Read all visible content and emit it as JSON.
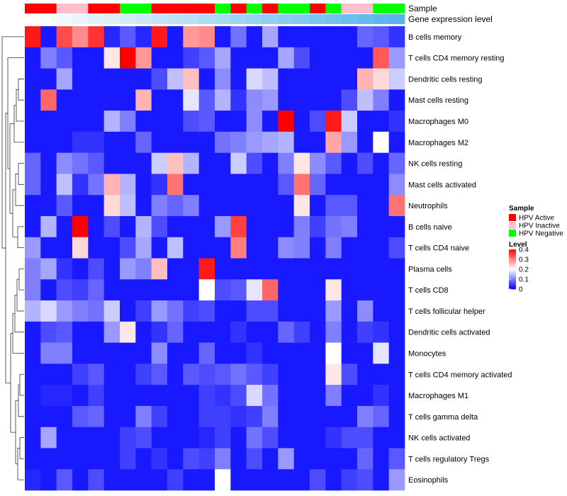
{
  "chart_data": {
    "type": "heatmap",
    "title": "",
    "columns": 24,
    "row_labels": [
      "B cells memory",
      "T cells CD4 memory resting",
      "Dendritic cells resting",
      "Mast cells resting",
      "Macrophages M0",
      "Macrophages M2",
      "NK cells resting",
      "Mast cells activated",
      "Neutrophils",
      "B cells naive",
      "T cells CD4 naive",
      "Plasma cells",
      "T cells CD8",
      "T cells follicular helper",
      "Dendritic cells activated",
      "Monocytes",
      "T cells CD4 memory activated",
      "Macrophages M1",
      "T cells gamma delta",
      "NK cells activated",
      "T cells regulatory  Tregs",
      "Eosinophils"
    ],
    "values": [
      [
        0.38,
        0.02,
        0.34,
        0.29,
        0.36,
        0.03,
        0.07,
        0.03,
        0.38,
        0.02,
        0.28,
        0.29,
        0.02,
        0.09,
        0.02,
        0.13,
        0.02,
        0.02,
        0.02,
        0.02,
        0.02,
        0.08,
        0.07,
        0.04
      ],
      [
        0.02,
        0.1,
        0.07,
        0.02,
        0.02,
        0.22,
        0.4,
        0.28,
        0.02,
        0.02,
        0.05,
        0.07,
        0.13,
        0.02,
        0.02,
        0.02,
        0.13,
        0.06,
        0.02,
        0.02,
        0.02,
        0.02,
        0.33,
        0.12
      ],
      [
        0.02,
        0.02,
        0.13,
        0.02,
        0.02,
        0.02,
        0.02,
        0.02,
        0.06,
        0.15,
        0.25,
        0.02,
        0.11,
        0.02,
        0.17,
        0.15,
        0.02,
        0.02,
        0.02,
        0.02,
        0.02,
        0.26,
        0.23,
        0.16
      ],
      [
        0.02,
        0.32,
        0.02,
        0.02,
        0.02,
        0.02,
        0.02,
        0.26,
        0.02,
        0.02,
        0.18,
        0.07,
        0.14,
        0.04,
        0.11,
        0.12,
        0.02,
        0.02,
        0.02,
        0.02,
        0.06,
        0.15,
        0.1,
        0.02
      ],
      [
        0.02,
        0.02,
        0.02,
        0.02,
        0.02,
        0.14,
        0.1,
        0.02,
        0.02,
        0.02,
        0.06,
        0.07,
        0.02,
        0.02,
        0.11,
        0.02,
        0.4,
        0.02,
        0.06,
        0.38,
        0.16,
        0.02,
        0.02,
        0.04
      ],
      [
        0.02,
        0.02,
        0.02,
        0.04,
        0.04,
        0.02,
        0.02,
        0.08,
        0.02,
        0.02,
        0.02,
        0.02,
        0.09,
        0.1,
        0.12,
        0.13,
        0.14,
        0.02,
        0.02,
        0.27,
        0.12,
        0.02,
        0.2,
        0.02
      ],
      [
        0.08,
        0.02,
        0.11,
        0.09,
        0.07,
        0.02,
        0.02,
        0.02,
        0.16,
        0.25,
        0.14,
        0.02,
        0.02,
        0.16,
        0.06,
        0.02,
        0.1,
        0.22,
        0.11,
        0.07,
        0.02,
        0.06,
        0.02,
        0.08
      ],
      [
        0.08,
        0.02,
        0.15,
        0.04,
        0.09,
        0.26,
        0.14,
        0.02,
        0.04,
        0.31,
        0.02,
        0.02,
        0.02,
        0.02,
        0.02,
        0.02,
        0.07,
        0.31,
        0.08,
        0.02,
        0.02,
        0.02,
        0.02,
        0.11
      ],
      [
        0.02,
        0.02,
        0.07,
        0.02,
        0.02,
        0.23,
        0.15,
        0.02,
        0.1,
        0.08,
        0.1,
        0.02,
        0.02,
        0.02,
        0.02,
        0.02,
        0.02,
        0.22,
        0.02,
        0.07,
        0.07,
        0.02,
        0.02,
        0.31
      ],
      [
        0.02,
        0.14,
        0.02,
        0.4,
        0.02,
        0.06,
        0.02,
        0.14,
        0.06,
        0.02,
        0.02,
        0.02,
        0.12,
        0.35,
        0.02,
        0.02,
        0.02,
        0.1,
        0.05,
        0.09,
        0.1,
        0.02,
        0.02,
        0.02
      ],
      [
        0.12,
        0.02,
        0.02,
        0.23,
        0.02,
        0.02,
        0.06,
        0.13,
        0.02,
        0.15,
        0.02,
        0.02,
        0.02,
        0.3,
        0.02,
        0.02,
        0.11,
        0.1,
        0.02,
        0.1,
        0.02,
        0.02,
        0.02,
        0.06
      ],
      [
        0.1,
        0.13,
        0.04,
        0.02,
        0.06,
        0.02,
        0.12,
        0.1,
        0.25,
        0.02,
        0.02,
        0.38,
        0.02,
        0.02,
        0.02,
        0.02,
        0.02,
        0.02,
        0.02,
        0.02,
        0.02,
        0.02,
        0.02,
        0.02
      ],
      [
        0.1,
        0.02,
        0.06,
        0.05,
        0.08,
        0.02,
        0.02,
        0.02,
        0.02,
        0.02,
        0.02,
        0.2,
        0.06,
        0.07,
        0.18,
        0.32,
        0.02,
        0.02,
        0.02,
        0.22,
        0.02,
        0.02,
        0.02,
        0.02
      ],
      [
        0.14,
        0.17,
        0.12,
        0.1,
        0.09,
        0.16,
        0.02,
        0.05,
        0.12,
        0.09,
        0.05,
        0.06,
        0.02,
        0.02,
        0.06,
        0.06,
        0.02,
        0.02,
        0.02,
        0.12,
        0.02,
        0.11,
        0.02,
        0.02
      ],
      [
        0.02,
        0.06,
        0.07,
        0.02,
        0.02,
        0.12,
        0.22,
        0.02,
        0.04,
        0.08,
        0.02,
        0.02,
        0.02,
        0.04,
        0.02,
        0.02,
        0.08,
        0.05,
        0.02,
        0.1,
        0.02,
        0.05,
        0.04,
        0.02
      ],
      [
        0.02,
        0.1,
        0.1,
        0.02,
        0.02,
        0.02,
        0.02,
        0.02,
        0.11,
        0.02,
        0.02,
        0.08,
        0.02,
        0.02,
        0.04,
        0.02,
        0.02,
        0.02,
        0.02,
        0.2,
        0.02,
        0.02,
        0.18,
        0.02
      ],
      [
        0.02,
        0.02,
        0.02,
        0.05,
        0.07,
        0.02,
        0.02,
        0.05,
        0.07,
        0.02,
        0.07,
        0.06,
        0.07,
        0.09,
        0.07,
        0.05,
        0.02,
        0.02,
        0.02,
        0.22,
        0.06,
        0.02,
        0.02,
        0.02
      ],
      [
        0.02,
        0.03,
        0.03,
        0.02,
        0.05,
        0.02,
        0.02,
        0.02,
        0.02,
        0.02,
        0.02,
        0.05,
        0.04,
        0.06,
        0.17,
        0.09,
        0.02,
        0.02,
        0.02,
        0.1,
        0.02,
        0.02,
        0.04,
        0.02
      ],
      [
        0.02,
        0.02,
        0.02,
        0.07,
        0.08,
        0.02,
        0.02,
        0.1,
        0.05,
        0.02,
        0.02,
        0.05,
        0.05,
        0.04,
        0.05,
        0.1,
        0.02,
        0.02,
        0.02,
        0.02,
        0.02,
        0.1,
        0.08,
        0.02
      ],
      [
        0.02,
        0.13,
        0.02,
        0.02,
        0.02,
        0.02,
        0.05,
        0.06,
        0.02,
        0.02,
        0.02,
        0.03,
        0.05,
        0.02,
        0.09,
        0.06,
        0.02,
        0.02,
        0.02,
        0.04,
        0.06,
        0.06,
        0.02,
        0.02
      ],
      [
        0.02,
        0.02,
        0.02,
        0.02,
        0.02,
        0.02,
        0.05,
        0.02,
        0.04,
        0.02,
        0.06,
        0.05,
        0.1,
        0.02,
        0.06,
        0.02,
        0.12,
        0.02,
        0.02,
        0.02,
        0.02,
        0.08,
        0.02,
        0.07
      ],
      [
        0.03,
        0.02,
        0.07,
        0.02,
        0.06,
        0.02,
        0.02,
        0.02,
        0.02,
        0.05,
        0.02,
        0.02,
        0.2,
        0.02,
        0.02,
        0.02,
        0.02,
        0.02,
        0.06,
        0.02,
        0.05,
        0.06,
        0.02,
        0.12
      ]
    ],
    "annotations": [
      {
        "name": "Sample",
        "values": [
          "HPV Active",
          "HPV Active",
          "HPV Inactive",
          "HPV Inactive",
          "HPV Active",
          "HPV Active",
          "HPV Negative",
          "HPV Negative",
          "HPV Active",
          "HPV Active",
          "HPV Active",
          "HPV Active",
          "HPV Negative",
          "HPV Active",
          "HPV Negative",
          "HPV Active",
          "HPV Negative",
          "HPV Negative",
          "HPV Active",
          "HPV Negative",
          "HPV Inactive",
          "HPV Inactive",
          "HPV Negative",
          "HPV Negative"
        ]
      },
      {
        "name": "Gene expression level",
        "values": [
          0.0,
          0.04,
          0.09,
          0.13,
          0.17,
          0.22,
          0.26,
          0.3,
          0.35,
          0.39,
          0.43,
          0.48,
          0.52,
          0.57,
          0.61,
          0.65,
          0.7,
          0.74,
          0.78,
          0.83,
          0.87,
          0.91,
          0.96,
          1.0
        ]
      }
    ],
    "sample_colors": {
      "HPV Active": "#ff0000",
      "HPV Inactive": "#ffc0cb",
      "HPV Negative": "#00ff00"
    },
    "gene_expression_colors": {
      "low": "#ffffff",
      "high": "#56b4e9"
    },
    "color_scale": {
      "low": "#0000ff",
      "mid": "#ffffff",
      "high": "#ff0000",
      "min": 0,
      "mid_value": 0.2,
      "max": 0.4
    },
    "legend": {
      "sample_title": "Sample",
      "sample_items": [
        "HPV Active",
        "HPV Inactive",
        "HPV Negative"
      ],
      "level_title": "Level",
      "level_ticks": [
        "0.4",
        "0.3",
        "0.2",
        "0.1",
        "0"
      ],
      "level_tick_values": [
        0.4,
        0.3,
        0.2,
        0.1,
        0
      ]
    },
    "row_dendrogram": true
  }
}
